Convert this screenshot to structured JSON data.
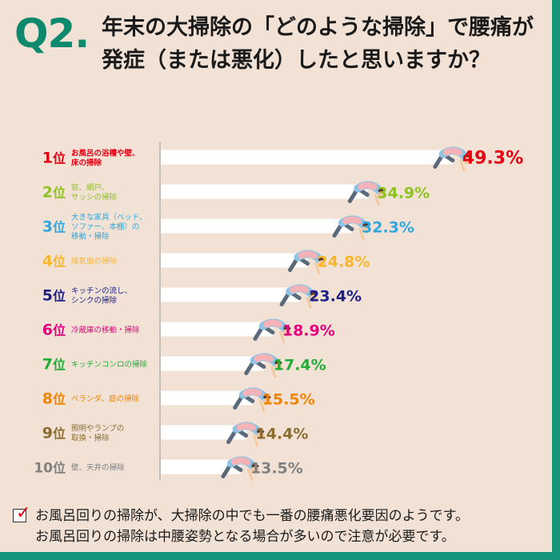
{
  "header": {
    "q_mark": "Q2.",
    "question": "年末の大掃除の「どのような掃除」で腰痛が発症（または悪化）したと思いますか？"
  },
  "chart_data": {
    "type": "bar",
    "rank_suffix": "位",
    "ranks": [
      "1",
      "2",
      "3",
      "4",
      "5",
      "6",
      "7",
      "8",
      "9",
      "10"
    ],
    "categories": [
      [
        "お風呂の浴槽や壁、",
        "床の掃除"
      ],
      [
        "窓、網戸、",
        "サッシの掃除"
      ],
      [
        "大きな家具（ベッド、",
        "ソファー、本棚）の",
        "移動・掃除"
      ],
      [
        "換気扇の掃除"
      ],
      [
        "キッチンの流し、",
        "シンクの掃除"
      ],
      [
        "冷蔵庫の移動・掃除"
      ],
      [
        "キッチンコンロの掃除"
      ],
      [
        "ベランダ、庭の掃除"
      ],
      [
        "照明やランプの",
        "取換・掃除"
      ],
      [
        "壁、天井の掃除"
      ]
    ],
    "values": [
      49.3,
      34.9,
      32.3,
      24.8,
      23.4,
      18.9,
      17.4,
      15.5,
      14.4,
      13.5
    ],
    "value_labels": [
      "49.3%",
      "34.9%",
      "32.3%",
      "24.8%",
      "23.4%",
      "18.9%",
      "17.4%",
      "15.5%",
      "14.4%",
      "13.5%"
    ],
    "colors": [
      "#e60012",
      "#8dc21f",
      "#2ea7e0",
      "#f8b62d",
      "#1d2088",
      "#e4007f",
      "#22ac38",
      "#f08300",
      "#8b6d2f",
      "#808080"
    ],
    "bar_color": "#ffffff",
    "xlim": [
      0,
      50
    ]
  },
  "footer": {
    "check_icon": "check-icon",
    "lines": [
      "お風呂回りの掃除が、大掃除の中でも一番の腰痛悪化要因のようです。",
      "お風呂回りの掃除は中腰姿勢となる場合が多いので注意が必要です。"
    ]
  }
}
